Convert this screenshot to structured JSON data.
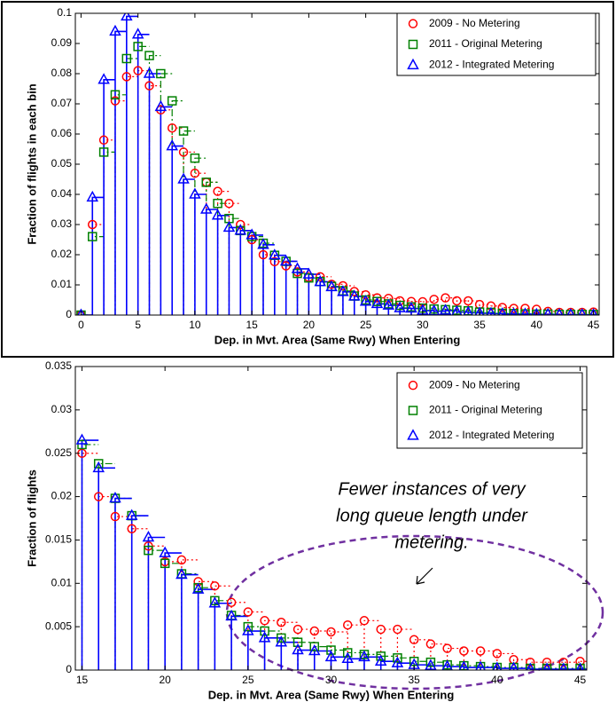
{
  "chart_data": [
    {
      "type": "stairs",
      "xlabel": "Dep. in Mvt. Area (Same Rwy) When Entering",
      "ylabel": "Fraction of flights in each bin",
      "xlim": [
        -0.5,
        45.5
      ],
      "ylim": [
        0,
        0.1
      ],
      "xticks": [
        0,
        5,
        10,
        15,
        20,
        25,
        30,
        35,
        40,
        45
      ],
      "yticks": [
        0,
        0.01,
        0.02,
        0.03,
        0.04,
        0.05,
        0.06,
        0.07,
        0.08,
        0.09,
        0.1
      ],
      "legend": "upper right",
      "x": [
        0,
        1,
        2,
        3,
        4,
        5,
        6,
        7,
        8,
        9,
        10,
        11,
        12,
        13,
        14,
        15,
        16,
        17,
        18,
        19,
        20,
        21,
        22,
        23,
        24,
        25,
        26,
        27,
        28,
        29,
        30,
        31,
        32,
        33,
        34,
        35,
        36,
        37,
        38,
        39,
        40,
        41,
        42,
        43,
        44,
        45
      ],
      "series": [
        {
          "name": "2009 - No Metering",
          "color": "#ff0000",
          "marker": "circle",
          "linestyle": "dotted",
          "values": [
            0,
            0.03,
            0.058,
            0.071,
            0.079,
            0.081,
            0.076,
            0.068,
            0.062,
            0.054,
            0.047,
            0.044,
            0.041,
            0.037,
            0.03,
            0.025,
            0.02,
            0.0177,
            0.0163,
            0.0143,
            0.0125,
            0.0127,
            0.0102,
            0.0097,
            0.0078,
            0.0067,
            0.0057,
            0.0055,
            0.0047,
            0.0045,
            0.0044,
            0.0052,
            0.0057,
            0.0047,
            0.0047,
            0.0035,
            0.003,
            0.0025,
            0.0022,
            0.0022,
            0.0019,
            0.0012,
            0.0009,
            0.0009,
            0.0009,
            0.001
          ]
        },
        {
          "name": "2011 - Original Metering",
          "color": "#008000",
          "marker": "square",
          "linestyle": "dashdot",
          "values": [
            0,
            0.026,
            0.054,
            0.073,
            0.085,
            0.089,
            0.086,
            0.08,
            0.071,
            0.061,
            0.052,
            0.044,
            0.037,
            0.032,
            0.028,
            0.026,
            0.0238,
            0.0198,
            0.0178,
            0.0138,
            0.0123,
            0.0111,
            0.0095,
            0.008,
            0.0063,
            0.005,
            0.0045,
            0.0037,
            0.0032,
            0.0027,
            0.0023,
            0.002,
            0.0018,
            0.0016,
            0.0014,
            0.001,
            0.0009,
            0.0006,
            0.0005,
            0.0004,
            0.0003,
            0.0003,
            0.0002,
            0.0002,
            0.0002,
            0.0002
          ]
        },
        {
          "name": "2012 - Integrated Metering",
          "color": "#0000ff",
          "marker": "triangle",
          "linestyle": "solid",
          "values": [
            0,
            0.039,
            0.078,
            0.094,
            0.099,
            0.093,
            0.08,
            0.069,
            0.056,
            0.045,
            0.04,
            0.035,
            0.033,
            0.029,
            0.028,
            0.0265,
            0.0233,
            0.0198,
            0.0178,
            0.0153,
            0.0135,
            0.011,
            0.0093,
            0.0077,
            0.0062,
            0.0045,
            0.0037,
            0.0032,
            0.0023,
            0.0022,
            0.0015,
            0.0013,
            0.0015,
            0.001,
            0.0008,
            0.0006,
            0.0005,
            0.0004,
            0.0003,
            0.0003,
            0.0002,
            0.0002,
            0.0001,
            0.0001,
            0.0001,
            0.0001
          ]
        }
      ]
    },
    {
      "type": "stairs",
      "xlabel": "Dep. in Mvt. Area (Same Rwy) When Entering",
      "ylabel": "Fraction of flights",
      "xlim": [
        14.6,
        45.4
      ],
      "ylim": [
        0,
        0.035
      ],
      "xticks": [
        15,
        20,
        25,
        30,
        35,
        40,
        45
      ],
      "yticks": [
        0,
        0.005,
        0.01,
        0.015,
        0.02,
        0.025,
        0.03,
        0.035
      ],
      "legend": "upper right",
      "annotation_lines": [
        "Fewer instances of very",
        "long queue length under",
        "metering."
      ],
      "x": [
        15,
        16,
        17,
        18,
        19,
        20,
        21,
        22,
        23,
        24,
        25,
        26,
        27,
        28,
        29,
        30,
        31,
        32,
        33,
        34,
        35,
        36,
        37,
        38,
        39,
        40,
        41,
        42,
        43,
        44,
        45
      ],
      "series": [
        {
          "name": "2009 - No Metering",
          "color": "#ff0000",
          "marker": "circle",
          "linestyle": "dotted",
          "values": [
            0.025,
            0.02,
            0.0177,
            0.0163,
            0.0143,
            0.0125,
            0.0127,
            0.0102,
            0.0097,
            0.0078,
            0.0067,
            0.0057,
            0.0055,
            0.0047,
            0.0045,
            0.0044,
            0.0052,
            0.0057,
            0.0047,
            0.0047,
            0.0035,
            0.003,
            0.0025,
            0.0022,
            0.0022,
            0.0019,
            0.0012,
            0.0009,
            0.0009,
            0.0009,
            0.001
          ]
        },
        {
          "name": "2011 - Original Metering",
          "color": "#008000",
          "marker": "square",
          "linestyle": "dashdot",
          "values": [
            0.026,
            0.0238,
            0.0198,
            0.0178,
            0.0138,
            0.0123,
            0.0111,
            0.0095,
            0.008,
            0.0063,
            0.005,
            0.0045,
            0.0037,
            0.0032,
            0.0027,
            0.0023,
            0.002,
            0.0018,
            0.0016,
            0.0014,
            0.001,
            0.0009,
            0.0006,
            0.0005,
            0.0004,
            0.0003,
            0.0003,
            0.0002,
            0.0002,
            0.0002,
            0.0002
          ]
        },
        {
          "name": "2012 - Integrated Metering",
          "color": "#0000ff",
          "marker": "triangle",
          "linestyle": "solid",
          "values": [
            0.0265,
            0.0233,
            0.0198,
            0.0178,
            0.0153,
            0.0135,
            0.011,
            0.0093,
            0.0077,
            0.0062,
            0.0045,
            0.0037,
            0.0032,
            0.0023,
            0.0022,
            0.0015,
            0.0013,
            0.0015,
            0.001,
            0.0008,
            0.0006,
            0.0005,
            0.0004,
            0.0003,
            0.0003,
            0.0002,
            0.0002,
            0.0001,
            0.0001,
            0.0001,
            0.0001
          ]
        }
      ]
    }
  ]
}
